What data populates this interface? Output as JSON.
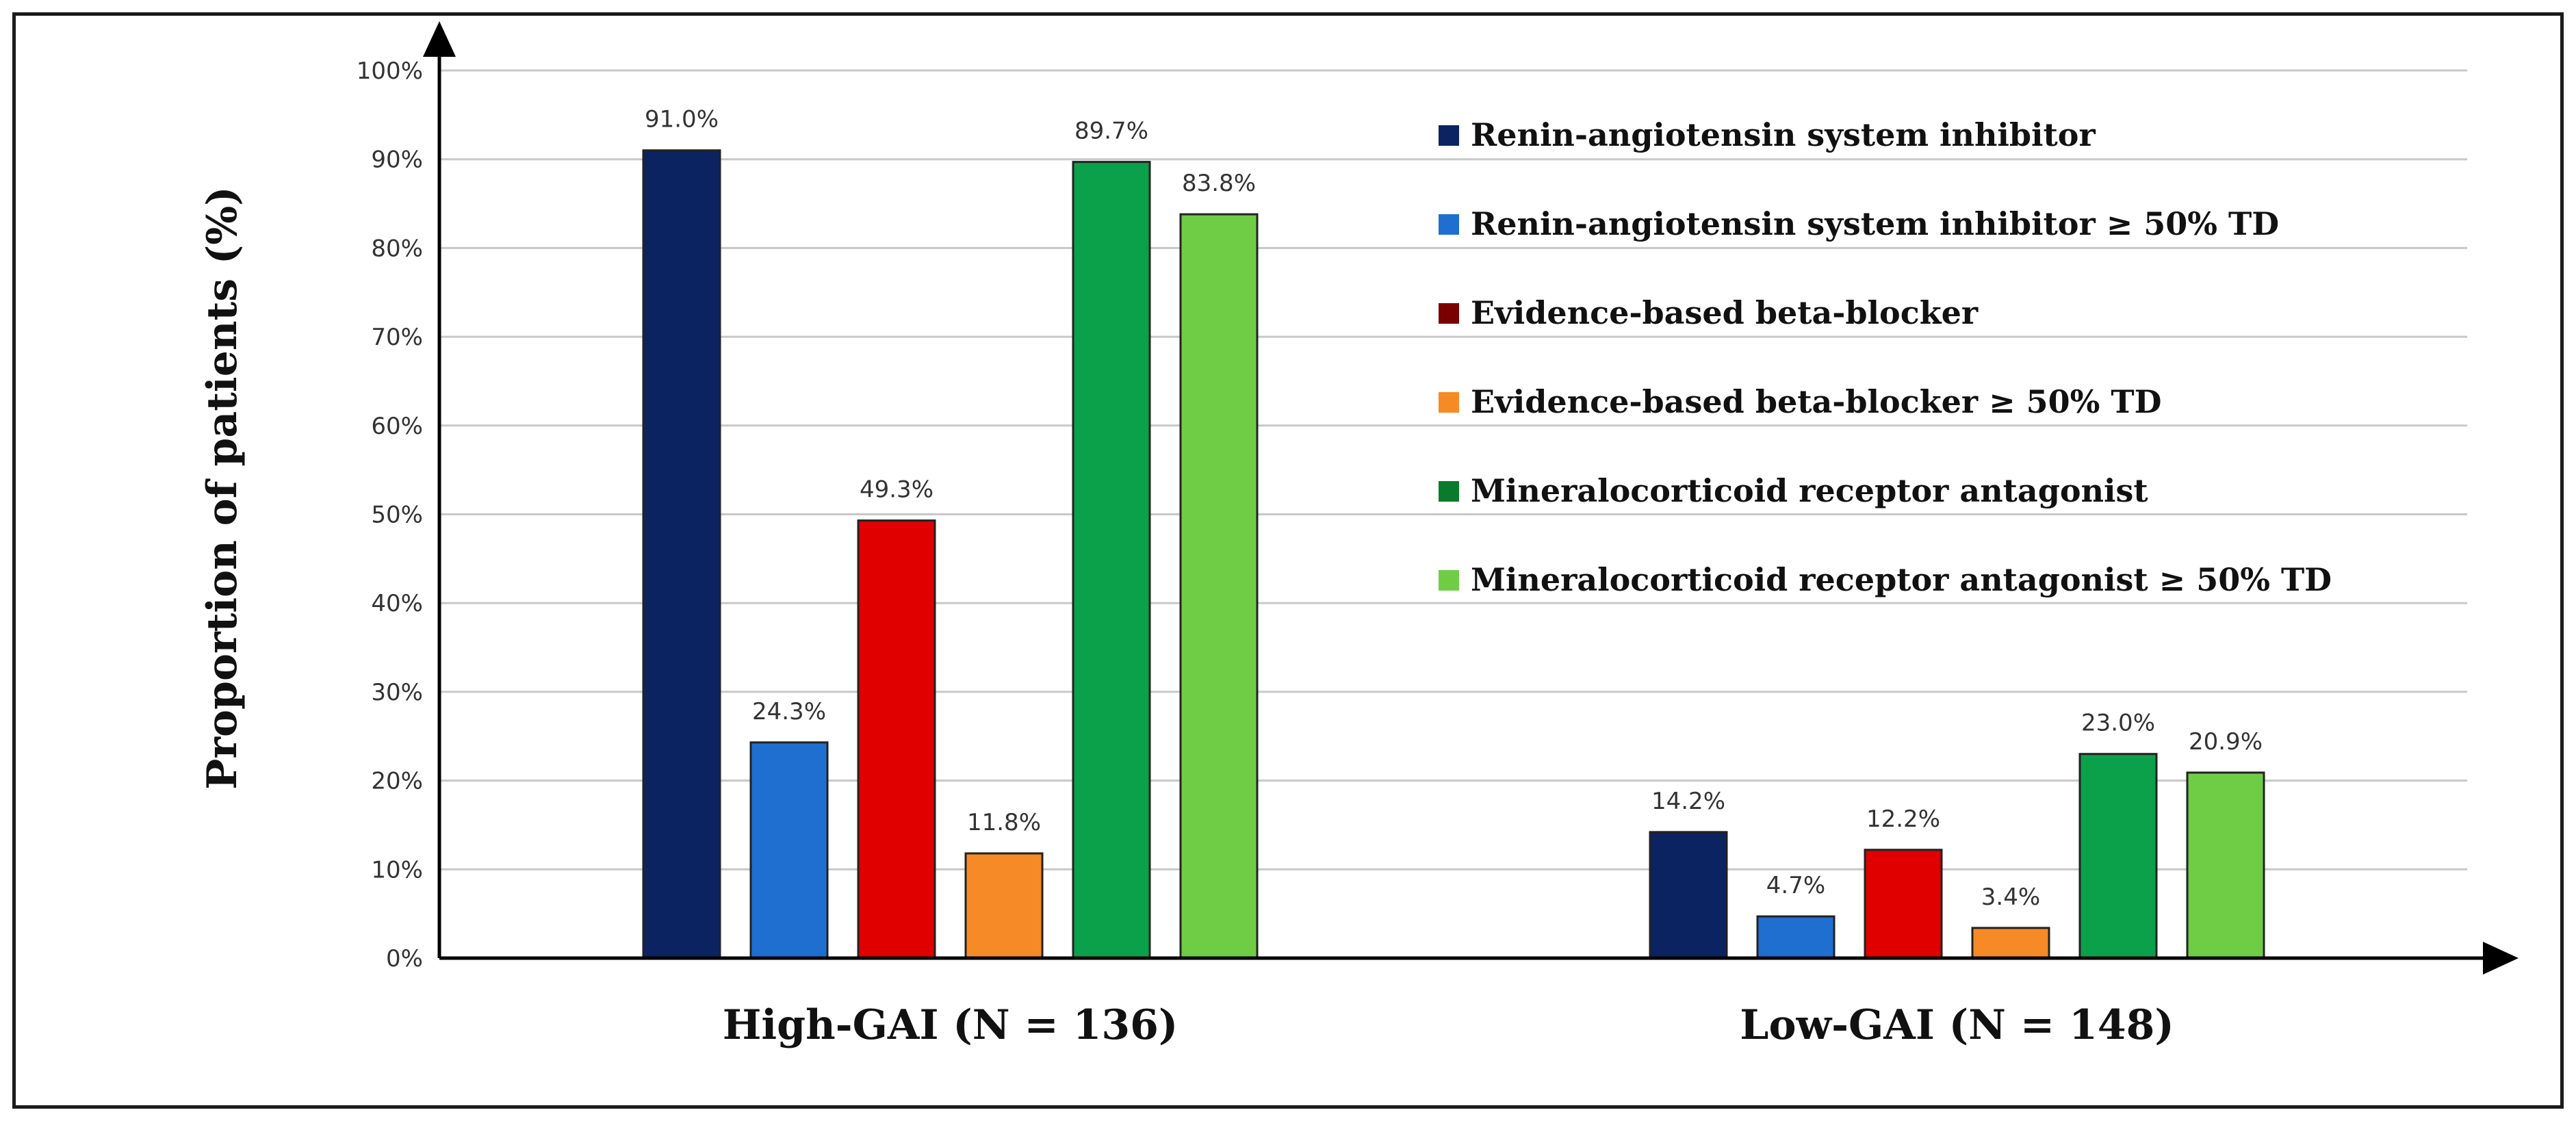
{
  "chart_data": {
    "type": "bar",
    "categories": [
      "High-GAI (N = 136)",
      "Low-GAI (N = 148)"
    ],
    "series": [
      {
        "name": "Renin-angiotensin system inhibitor",
        "color": "#0b2361",
        "values": [
          91.0,
          14.2
        ],
        "labels": [
          "91.0%",
          "14.2%"
        ]
      },
      {
        "name": "Renin-angiotensin system inhibitor ≥ 50% TD",
        "color": "#1f6fd1",
        "values": [
          24.3,
          4.7
        ],
        "labels": [
          "24.3%",
          "4.7%"
        ]
      },
      {
        "name": "Evidence-based beta-blocker",
        "color": "#e00000",
        "values": [
          49.3,
          12.2
        ],
        "labels": [
          "49.3%",
          "12.2%"
        ]
      },
      {
        "name": "Evidence-based beta-blocker ≥ 50% TD",
        "color": "#f68a26",
        "values": [
          11.8,
          3.4
        ],
        "labels": [
          "11.8%",
          "3.4%"
        ]
      },
      {
        "name": "Mineralocorticoid receptor antagonist",
        "color": "#0aa14a",
        "values": [
          89.7,
          23.0
        ],
        "labels": [
          "89.7%",
          "23.0%"
        ]
      },
      {
        "name": "Mineralocorticoid receptor antagonist ≥ 50% TD",
        "color": "#6fcd45",
        "values": [
          83.8,
          20.9
        ],
        "labels": [
          "83.8%",
          "20.9%"
        ]
      }
    ],
    "legend_swatch_colors": [
      "#0b2361",
      "#1f6fd1",
      "#7a0000",
      "#f68a26",
      "#0a7a2c",
      "#6fcd45"
    ],
    "ylabel": "Proportion of patients (%)",
    "xlabel": "",
    "ylim": [
      0,
      100
    ],
    "yticks": [
      "0%",
      "10%",
      "20%",
      "30%",
      "40%",
      "50%",
      "60%",
      "70%",
      "80%",
      "90%",
      "100%"
    ],
    "grid": true,
    "legend_position": "top-right"
  }
}
